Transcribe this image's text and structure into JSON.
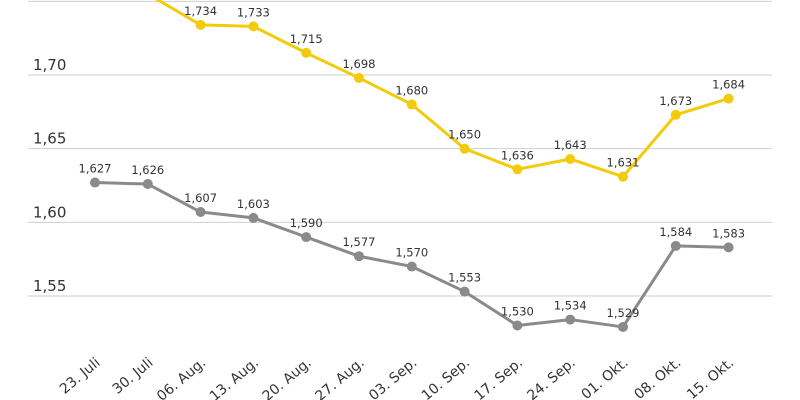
{
  "chart_data": {
    "type": "line",
    "title": "",
    "xlabel": "",
    "ylabel": "",
    "categories": [
      "23. Juli",
      "30. Juli",
      "06. Aug.",
      "13. Aug.",
      "20. Aug.",
      "27. Aug.",
      "03. Sep.",
      "10. Sep.",
      "17. Sep.",
      "24. Sep.",
      "01. Okt.",
      "08. Okt.",
      "15. Okt."
    ],
    "ylim": [
      1.5,
      1.75
    ],
    "yticks": [
      {
        "value": 1.55,
        "label": "1,55"
      },
      {
        "value": 1.6,
        "label": "1,60"
      },
      {
        "value": 1.65,
        "label": "1,65"
      },
      {
        "value": 1.7,
        "label": "1,70"
      }
    ],
    "grid": true,
    "series": [
      {
        "name": "Yellow series",
        "color": "#f2cb0c",
        "values": [
          1.755,
          1.755,
          1.734,
          1.733,
          1.715,
          1.698,
          1.68,
          1.65,
          1.636,
          1.643,
          1.631,
          1.673,
          1.684
        ],
        "labels": [
          "",
          "",
          "1,734",
          "1,733",
          "1,715",
          "1,698",
          "1,680",
          "1,650",
          "1,636",
          "1,643",
          "1,631",
          "1,673",
          "1,684"
        ]
      },
      {
        "name": "Gray series",
        "color": "#8a8a8a",
        "values": [
          1.627,
          1.626,
          1.607,
          1.603,
          1.59,
          1.577,
          1.57,
          1.553,
          1.53,
          1.534,
          1.529,
          1.584,
          1.583
        ],
        "labels": [
          "1,627",
          "1,626",
          "1,607",
          "1,603",
          "1,590",
          "1,577",
          "1,570",
          "1,553",
          "1,530",
          "1,534",
          "1,529",
          "1,584",
          "1,583"
        ]
      }
    ]
  }
}
